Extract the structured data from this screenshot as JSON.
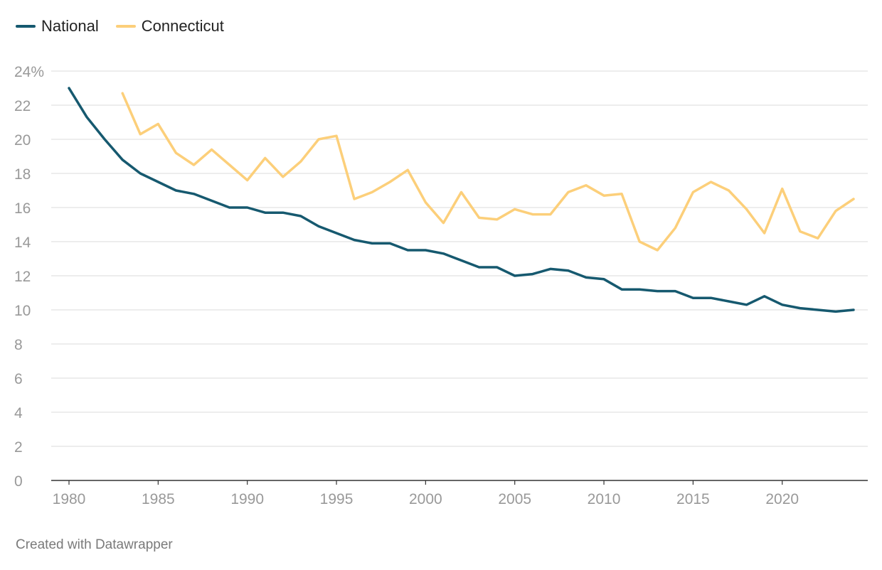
{
  "legend": {
    "items": [
      {
        "label": "National",
        "color": "#16596f"
      },
      {
        "label": "Connecticut",
        "color": "#fccf7a"
      }
    ]
  },
  "footer": {
    "text": "Created with Datawrapper"
  },
  "chart_data": {
    "type": "line",
    "title": "",
    "xlabel": "",
    "ylabel": "",
    "xlim": [
      1980,
      2024
    ],
    "ylim": [
      0,
      24
    ],
    "x_ticks": [
      1980,
      1985,
      1990,
      1995,
      2000,
      2005,
      2010,
      2015,
      2020
    ],
    "y_ticks": [
      0,
      2,
      4,
      6,
      8,
      10,
      12,
      14,
      16,
      18,
      20,
      22,
      24
    ],
    "y_tick_labels": [
      "0",
      "2",
      "4",
      "6",
      "8",
      "10",
      "12",
      "14",
      "16",
      "18",
      "20",
      "22",
      "24%"
    ],
    "grid": true,
    "legend_position": "top-left",
    "series": [
      {
        "name": "National",
        "color": "#16596f",
        "points": [
          [
            1980,
            23.0
          ],
          [
            1981,
            21.3
          ],
          [
            1982,
            20.0
          ],
          [
            1983,
            18.8
          ],
          [
            1984,
            18.0
          ],
          [
            1985,
            17.5
          ],
          [
            1986,
            17.0
          ],
          [
            1987,
            16.8
          ],
          [
            1988,
            16.4
          ],
          [
            1989,
            16.0
          ],
          [
            1990,
            16.0
          ],
          [
            1991,
            15.7
          ],
          [
            1992,
            15.7
          ],
          [
            1993,
            15.5
          ],
          [
            1994,
            14.9
          ],
          [
            1995,
            14.5
          ],
          [
            1996,
            14.1
          ],
          [
            1997,
            13.9
          ],
          [
            1998,
            13.9
          ],
          [
            1999,
            13.5
          ],
          [
            2000,
            13.5
          ],
          [
            2001,
            13.3
          ],
          [
            2002,
            12.9
          ],
          [
            2003,
            12.5
          ],
          [
            2004,
            12.5
          ],
          [
            2005,
            12.0
          ],
          [
            2006,
            12.1
          ],
          [
            2007,
            12.4
          ],
          [
            2008,
            12.3
          ],
          [
            2009,
            11.9
          ],
          [
            2010,
            11.8
          ],
          [
            2011,
            11.2
          ],
          [
            2012,
            11.2
          ],
          [
            2013,
            11.1
          ],
          [
            2014,
            11.1
          ],
          [
            2015,
            10.7
          ],
          [
            2016,
            10.7
          ],
          [
            2017,
            10.5
          ],
          [
            2018,
            10.3
          ],
          [
            2019,
            10.8
          ],
          [
            2020,
            10.3
          ],
          [
            2021,
            10.1
          ],
          [
            2022,
            10.0
          ],
          [
            2023,
            9.9
          ],
          [
            2024,
            10.0
          ]
        ]
      },
      {
        "name": "Connecticut",
        "color": "#fccf7a",
        "points": [
          [
            1983,
            22.7
          ],
          [
            1984,
            20.3
          ],
          [
            1985,
            20.9
          ],
          [
            1986,
            19.2
          ],
          [
            1987,
            18.5
          ],
          [
            1988,
            19.4
          ],
          [
            1989,
            18.5
          ],
          [
            1990,
            17.6
          ],
          [
            1991,
            18.9
          ],
          [
            1992,
            17.8
          ],
          [
            1993,
            18.7
          ],
          [
            1994,
            20.0
          ],
          [
            1995,
            20.2
          ],
          [
            1996,
            16.5
          ],
          [
            1997,
            16.9
          ],
          [
            1998,
            17.5
          ],
          [
            1999,
            18.2
          ],
          [
            2000,
            16.3
          ],
          [
            2001,
            15.1
          ],
          [
            2002,
            16.9
          ],
          [
            2003,
            15.4
          ],
          [
            2004,
            15.3
          ],
          [
            2005,
            15.9
          ],
          [
            2006,
            15.6
          ],
          [
            2007,
            15.6
          ],
          [
            2008,
            16.9
          ],
          [
            2009,
            17.3
          ],
          [
            2010,
            16.7
          ],
          [
            2011,
            16.8
          ],
          [
            2012,
            14.0
          ],
          [
            2013,
            13.5
          ],
          [
            2014,
            14.8
          ],
          [
            2015,
            16.9
          ],
          [
            2016,
            17.5
          ],
          [
            2017,
            17.0
          ],
          [
            2018,
            15.9
          ],
          [
            2019,
            14.5
          ],
          [
            2020,
            17.1
          ],
          [
            2021,
            14.6
          ],
          [
            2022,
            14.2
          ],
          [
            2023,
            15.8
          ],
          [
            2024,
            16.5
          ]
        ]
      }
    ]
  }
}
